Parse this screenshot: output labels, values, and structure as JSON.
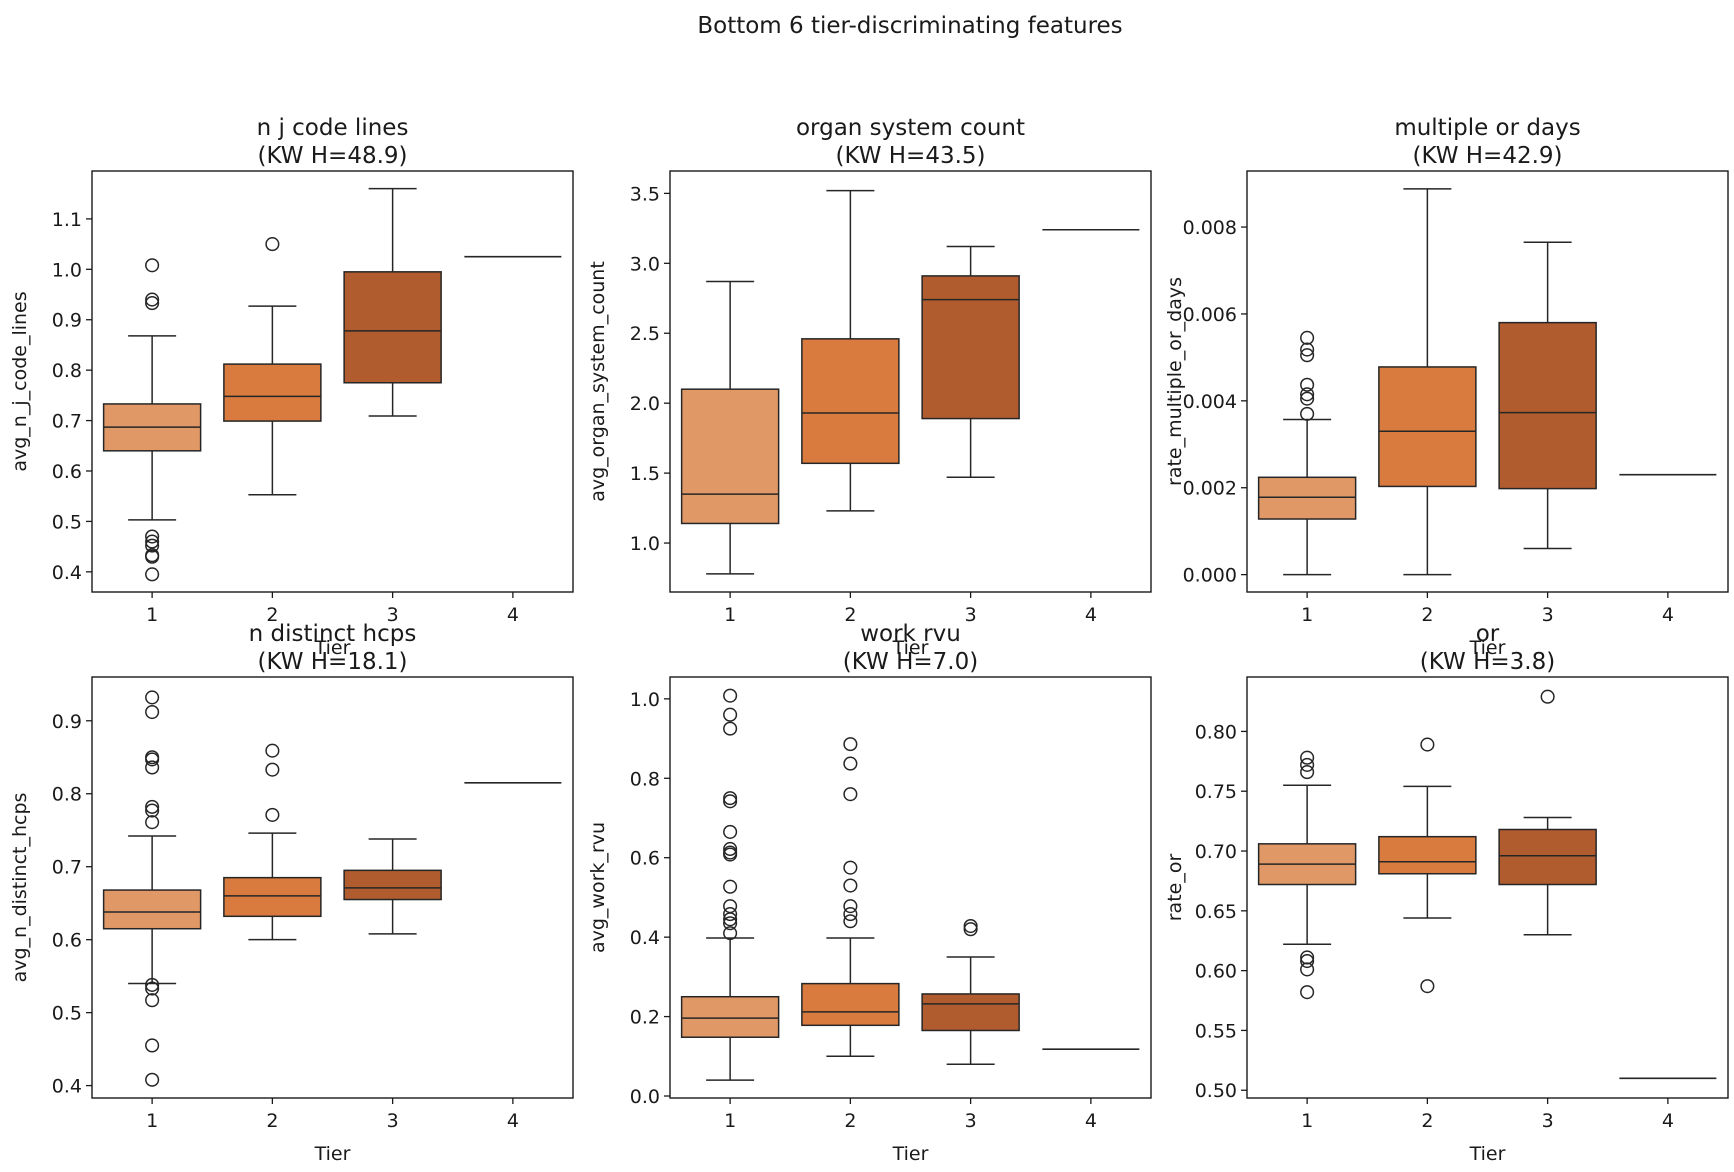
{
  "chart_data": {
    "type": "box",
    "suptitle": "Bottom 6 tier-discriminating features",
    "colors": [
      "#e09966",
      "#d97b3f",
      "#b05c2e",
      "#9a4a22"
    ],
    "panels": [
      {
        "title_line1": "n j code lines",
        "title_line2": "(KW H=48.9)",
        "xlabel": "Tier",
        "ylabel": "avg_n_j_code_lines",
        "categories": [
          "1",
          "2",
          "3",
          "4"
        ],
        "ylim": [
          0.36,
          1.195
        ],
        "yticks": [
          "0.4",
          "0.5",
          "0.6",
          "0.7",
          "0.8",
          "0.9",
          "1.0",
          "1.1"
        ],
        "boxes": [
          {
            "tier": "1",
            "whislo": 0.503,
            "q1": 0.64,
            "med": 0.687,
            "q3": 0.733,
            "whishi": 0.868,
            "fliers": [
              1.008,
              0.94,
              0.933,
              0.47,
              0.46,
              0.452,
              0.433,
              0.43,
              0.395
            ]
          },
          {
            "tier": "2",
            "whislo": 0.553,
            "q1": 0.699,
            "med": 0.748,
            "q3": 0.812,
            "whishi": 0.927,
            "fliers": [
              1.05
            ]
          },
          {
            "tier": "3",
            "whislo": 0.709,
            "q1": 0.775,
            "med": 0.878,
            "q3": 0.995,
            "whishi": 1.16,
            "fliers": []
          },
          {
            "tier": "4",
            "whislo": 1.025,
            "q1": 1.025,
            "med": 1.025,
            "q3": 1.025,
            "whishi": 1.025,
            "fliers": []
          }
        ]
      },
      {
        "title_line1": "organ system count",
        "title_line2": "(KW H=43.5)",
        "xlabel": "Tier",
        "ylabel": "avg_organ_system_count",
        "categories": [
          "1",
          "2",
          "3",
          "4"
        ],
        "ylim": [
          0.65,
          3.66
        ],
        "yticks": [
          "1.0",
          "1.5",
          "2.0",
          "2.5",
          "3.0",
          "3.5"
        ],
        "boxes": [
          {
            "tier": "1",
            "whislo": 0.78,
            "q1": 1.14,
            "med": 1.35,
            "q3": 2.1,
            "whishi": 2.87,
            "fliers": []
          },
          {
            "tier": "2",
            "whislo": 1.23,
            "q1": 1.57,
            "med": 1.93,
            "q3": 2.46,
            "whishi": 3.52,
            "fliers": []
          },
          {
            "tier": "3",
            "whislo": 1.47,
            "q1": 1.89,
            "med": 2.74,
            "q3": 2.91,
            "whishi": 3.12,
            "fliers": []
          },
          {
            "tier": "4",
            "whislo": 3.24,
            "q1": 3.24,
            "med": 3.24,
            "q3": 3.24,
            "whishi": 3.24,
            "fliers": []
          }
        ]
      },
      {
        "title_line1": "multiple or days",
        "title_line2": "(KW H=42.9)",
        "xlabel": "Tier",
        "ylabel": "rate_multiple_or_days",
        "categories": [
          "1",
          "2",
          "3",
          "4"
        ],
        "ylim": [
          -0.0004,
          0.00929
        ],
        "yticks": [
          "0.000",
          "0.002",
          "0.004",
          "0.006",
          "0.008"
        ],
        "boxes": [
          {
            "tier": "1",
            "whislo": 0.0,
            "q1": 0.00128,
            "med": 0.00178,
            "q3": 0.00224,
            "whishi": 0.00357,
            "fliers": [
              0.00545,
              0.00518,
              0.00505,
              0.00437,
              0.00415,
              0.00405,
              0.0037
            ]
          },
          {
            "tier": "2",
            "whislo": 0.0,
            "q1": 0.00203,
            "med": 0.0033,
            "q3": 0.00478,
            "whishi": 0.00888,
            "fliers": []
          },
          {
            "tier": "3",
            "whislo": 0.0006,
            "q1": 0.00198,
            "med": 0.00373,
            "q3": 0.0058,
            "whishi": 0.00765,
            "fliers": []
          },
          {
            "tier": "4",
            "whislo": 0.0023,
            "q1": 0.0023,
            "med": 0.0023,
            "q3": 0.0023,
            "whishi": 0.0023,
            "fliers": []
          }
        ]
      },
      {
        "title_line1": "n distinct hcps",
        "title_line2": "(KW H=18.1)",
        "xlabel": "Tier",
        "ylabel": "avg_n_distinct_hcps",
        "categories": [
          "1",
          "2",
          "3",
          "4"
        ],
        "ylim": [
          0.383,
          0.96
        ],
        "yticks": [
          "0.4",
          "0.5",
          "0.6",
          "0.7",
          "0.8",
          "0.9"
        ],
        "boxes": [
          {
            "tier": "1",
            "whislo": 0.54,
            "q1": 0.615,
            "med": 0.638,
            "q3": 0.668,
            "whishi": 0.742,
            "fliers": [
              0.932,
              0.912,
              0.85,
              0.847,
              0.836,
              0.782,
              0.777,
              0.761,
              0.538,
              0.533,
              0.517,
              0.455,
              0.408
            ]
          },
          {
            "tier": "2",
            "whislo": 0.6,
            "q1": 0.632,
            "med": 0.66,
            "q3": 0.685,
            "whishi": 0.746,
            "fliers": [
              0.859,
              0.833,
              0.771
            ]
          },
          {
            "tier": "3",
            "whislo": 0.608,
            "q1": 0.655,
            "med": 0.671,
            "q3": 0.695,
            "whishi": 0.738,
            "fliers": []
          },
          {
            "tier": "4",
            "whislo": 0.815,
            "q1": 0.815,
            "med": 0.815,
            "q3": 0.815,
            "whishi": 0.815,
            "fliers": []
          }
        ]
      },
      {
        "title_line1": "work rvu",
        "title_line2": "(KW H=7.0)",
        "xlabel": "Tier",
        "ylabel": "avg_work_rvu",
        "categories": [
          "1",
          "2",
          "3",
          "4"
        ],
        "ylim": [
          -0.005,
          1.055
        ],
        "yticks": [
          "0.0",
          "0.2",
          "0.4",
          "0.6",
          "0.8",
          "1.0"
        ],
        "boxes": [
          {
            "tier": "1",
            "whislo": 0.04,
            "q1": 0.148,
            "med": 0.196,
            "q3": 0.25,
            "whishi": 0.398,
            "fliers": [
              1.008,
              0.96,
              0.925,
              0.75,
              0.742,
              0.665,
              0.622,
              0.613,
              0.608,
              0.527,
              0.478,
              0.458,
              0.445,
              0.435,
              0.41
            ]
          },
          {
            "tier": "2",
            "whislo": 0.1,
            "q1": 0.178,
            "med": 0.212,
            "q3": 0.283,
            "whishi": 0.398,
            "fliers": [
              0.886,
              0.837,
              0.76,
              0.575,
              0.53,
              0.478,
              0.458,
              0.44
            ]
          },
          {
            "tier": "3",
            "whislo": 0.08,
            "q1": 0.165,
            "med": 0.232,
            "q3": 0.257,
            "whishi": 0.35,
            "fliers": [
              0.428,
              0.42
            ]
          },
          {
            "tier": "4",
            "whislo": 0.118,
            "q1": 0.118,
            "med": 0.118,
            "q3": 0.118,
            "whishi": 0.118,
            "fliers": []
          }
        ]
      },
      {
        "title_line1": "or",
        "title_line2": "(KW H=3.8)",
        "xlabel": "Tier",
        "ylabel": "rate_or",
        "categories": [
          "1",
          "2",
          "3",
          "4"
        ],
        "ylim": [
          0.4935,
          0.8455
        ],
        "yticks": [
          "0.50",
          "0.55",
          "0.60",
          "0.65",
          "0.70",
          "0.75",
          "0.80"
        ],
        "boxes": [
          {
            "tier": "1",
            "whislo": 0.622,
            "q1": 0.672,
            "med": 0.689,
            "q3": 0.706,
            "whishi": 0.755,
            "fliers": [
              0.778,
              0.772,
              0.766,
              0.611,
              0.608,
              0.601,
              0.582
            ]
          },
          {
            "tier": "2",
            "whislo": 0.644,
            "q1": 0.681,
            "med": 0.691,
            "q3": 0.712,
            "whishi": 0.754,
            "fliers": [
              0.789,
              0.587
            ]
          },
          {
            "tier": "3",
            "whislo": 0.63,
            "q1": 0.672,
            "med": 0.696,
            "q3": 0.718,
            "whishi": 0.728,
            "fliers": [
              0.829
            ]
          },
          {
            "tier": "4",
            "whislo": 0.51,
            "q1": 0.51,
            "med": 0.51,
            "q3": 0.51,
            "whishi": 0.51,
            "fliers": []
          }
        ]
      }
    ]
  }
}
